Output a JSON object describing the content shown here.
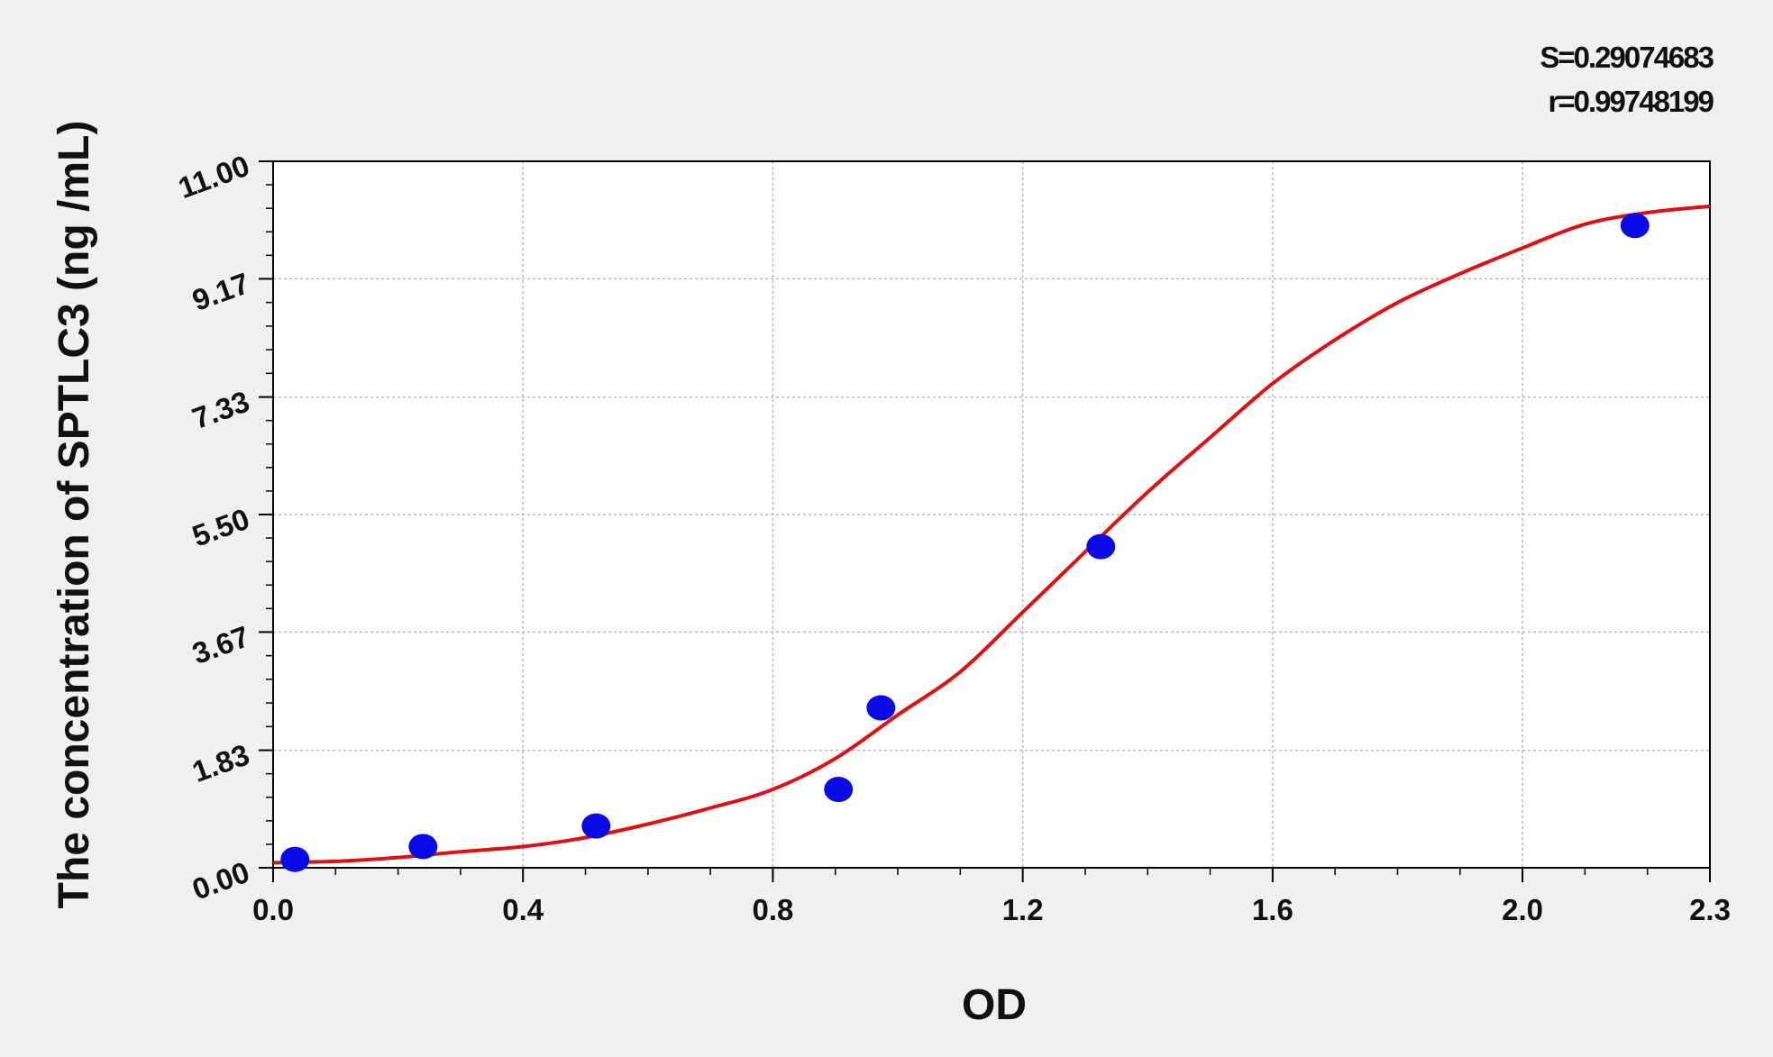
{
  "chart_data": {
    "type": "scatter",
    "title": "",
    "xlabel": "OD",
    "ylabel": "The concentration of SPTLC3 (ng /mL)",
    "xlim": [
      0,
      2.3
    ],
    "ylim": [
      0,
      11
    ],
    "x_ticks": [
      0.0,
      0.4,
      0.8,
      1.2,
      1.6,
      2.0,
      2.3
    ],
    "x_tick_labels": [
      "0.0",
      "0.4",
      "0.8",
      "1.2",
      "1.6",
      "2.0",
      "2.3"
    ],
    "y_ticks": [
      0,
      1.83,
      3.67,
      5.5,
      7.33,
      9.17,
      11
    ],
    "y_tick_labels": [
      "0.00",
      "1.83",
      "3.67",
      "5.50",
      "7.33",
      "9.17",
      "11.00"
    ],
    "grid": true,
    "stats": [
      "S=0.29074683",
      "r=0.99748199"
    ],
    "series": [
      {
        "kind": "points",
        "color": "#0a0ae6",
        "x": [
          0.035,
          0.24,
          0.517,
          0.905,
          0.973,
          1.325,
          2.18
        ],
        "y": [
          0.13,
          0.33,
          0.65,
          1.22,
          2.49,
          5.0,
          10.0
        ]
      },
      {
        "kind": "fitted-curve",
        "color": "#e01010",
        "curve": "4PL",
        "x": [
          0.0,
          0.1,
          0.2,
          0.3,
          0.4,
          0.5,
          0.6,
          0.7,
          0.8,
          0.9,
          1.0,
          1.1,
          1.2,
          1.3,
          1.4,
          1.5,
          1.6,
          1.7,
          1.8,
          1.9,
          2.0,
          2.1,
          2.2,
          2.3
        ],
        "y": [
          0.08,
          0.1,
          0.16,
          0.25,
          0.33,
          0.47,
          0.68,
          0.93,
          1.22,
          1.7,
          2.38,
          3.05,
          3.98,
          4.92,
          5.85,
          6.7,
          7.54,
          8.22,
          8.8,
          9.25,
          9.65,
          10.02,
          10.2,
          10.3
        ]
      }
    ]
  },
  "colors": {
    "background": "#f0f0f0",
    "plot_background": "#ffffff",
    "points": "#0a0ae6",
    "curve": "#e01010",
    "grid": "#b8b8b8"
  }
}
